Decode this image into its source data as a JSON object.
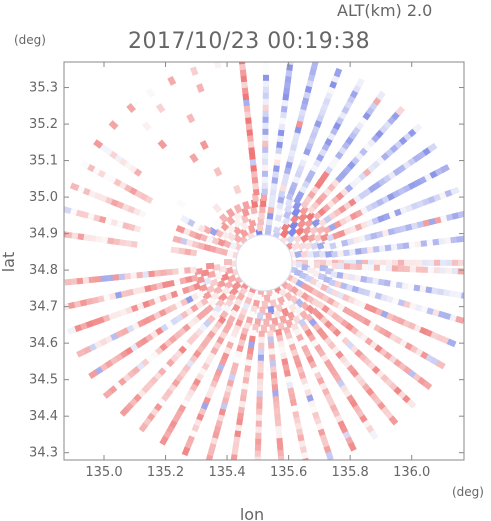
{
  "header": {
    "altitude_label": "ALT(km) 2.0",
    "timestamp": "2017/10/23 00:19:38"
  },
  "chart_data": {
    "type": "heatmap",
    "title": "2017/10/23 00:19:38",
    "xlabel": "lon",
    "ylabel": "lat",
    "x_unit": "(deg)",
    "y_unit": "(deg)",
    "xlim": [
      134.87,
      136.17
    ],
    "ylim": [
      34.28,
      35.37
    ],
    "x_ticks": [
      135.0,
      135.2,
      135.4,
      135.6,
      135.8,
      136.0
    ],
    "x_tick_labels": [
      "135.0",
      "135.2",
      "135.4",
      "135.6",
      "135.8",
      "136.0"
    ],
    "y_ticks": [
      34.3,
      34.4,
      34.5,
      34.6,
      34.7,
      34.8,
      34.9,
      35.0,
      35.1,
      35.2,
      35.3
    ],
    "y_tick_labels": [
      "34.3",
      "34.4",
      "34.5",
      "34.6",
      "34.7",
      "34.8",
      "34.9",
      "35.0",
      "35.1",
      "35.2",
      "35.3"
    ],
    "radar_center": [
      135.52,
      34.82
    ],
    "colors": {
      "positive": "#f07878",
      "positive_light": "#f8c8c8",
      "negative": "#7b86e6",
      "negative_light": "#c8ccf4",
      "axis": "#888888"
    }
  }
}
